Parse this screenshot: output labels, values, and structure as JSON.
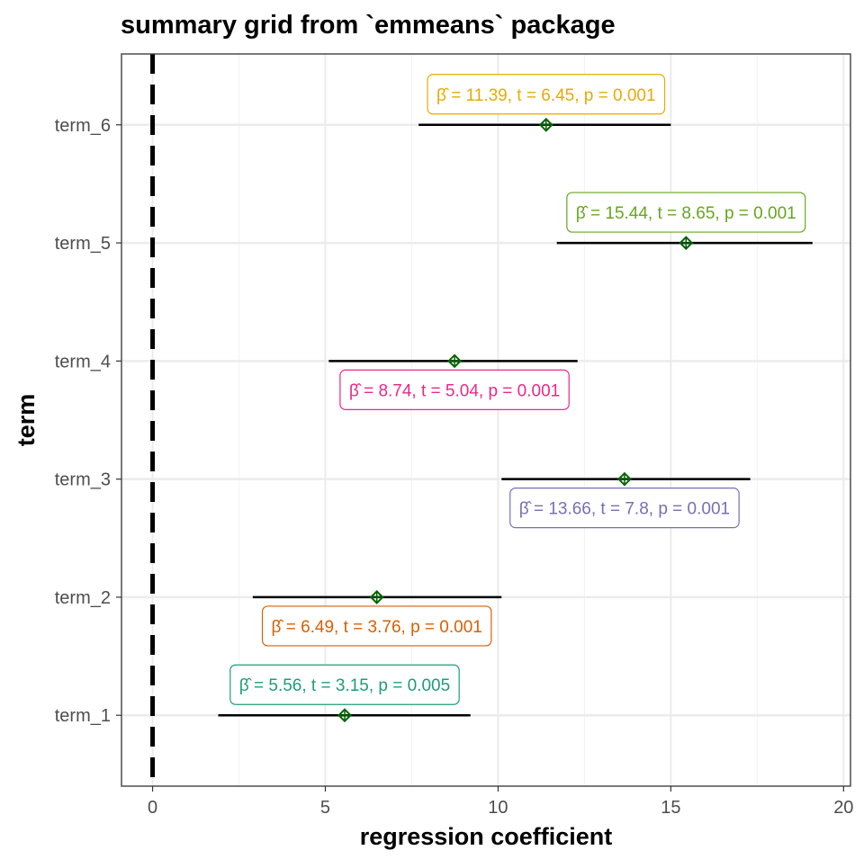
{
  "chart_data": {
    "type": "forest",
    "title": "summary grid from `emmeans` package",
    "xlabel": "regression coefficient",
    "ylabel": "term",
    "xlim": [
      -0.9,
      20.2
    ],
    "x_ticks": [
      0,
      5,
      10,
      15,
      20
    ],
    "x_tick_labels": [
      "0",
      "5",
      "10",
      "15",
      "20"
    ],
    "reference_line_x": 0,
    "grid": true,
    "terms": [
      {
        "name": "term_1",
        "estimate": 5.56,
        "conf_low": 1.9,
        "conf_high": 9.2,
        "label": "β̂ = 5.56, t = 3.15, p = 0.005",
        "color": "#1B9E77",
        "label_position": "above"
      },
      {
        "name": "term_2",
        "estimate": 6.49,
        "conf_low": 2.9,
        "conf_high": 10.1,
        "label": "β̂ = 6.49, t = 3.76, p = 0.001",
        "color": "#D95F02",
        "label_position": "below"
      },
      {
        "name": "term_3",
        "estimate": 13.66,
        "conf_low": 10.1,
        "conf_high": 17.3,
        "label": "β̂ = 13.66, t = 7.8, p = 0.001",
        "color": "#7570B3",
        "label_position": "below"
      },
      {
        "name": "term_4",
        "estimate": 8.74,
        "conf_low": 5.1,
        "conf_high": 12.3,
        "label": "β̂ = 8.74, t = 5.04, p = 0.001",
        "color": "#E7298A",
        "label_position": "below"
      },
      {
        "name": "term_5",
        "estimate": 15.44,
        "conf_low": 11.7,
        "conf_high": 19.1,
        "label": "β̂ = 15.44, t = 8.65, p = 0.001",
        "color": "#66A61E",
        "label_position": "above"
      },
      {
        "name": "term_6",
        "estimate": 11.39,
        "conf_low": 7.7,
        "conf_high": 15.0,
        "label": "β̂ = 11.39, t = 6.45, p = 0.001",
        "color": "#E6AB02",
        "label_position": "above"
      }
    ],
    "point_color": "#006400"
  }
}
